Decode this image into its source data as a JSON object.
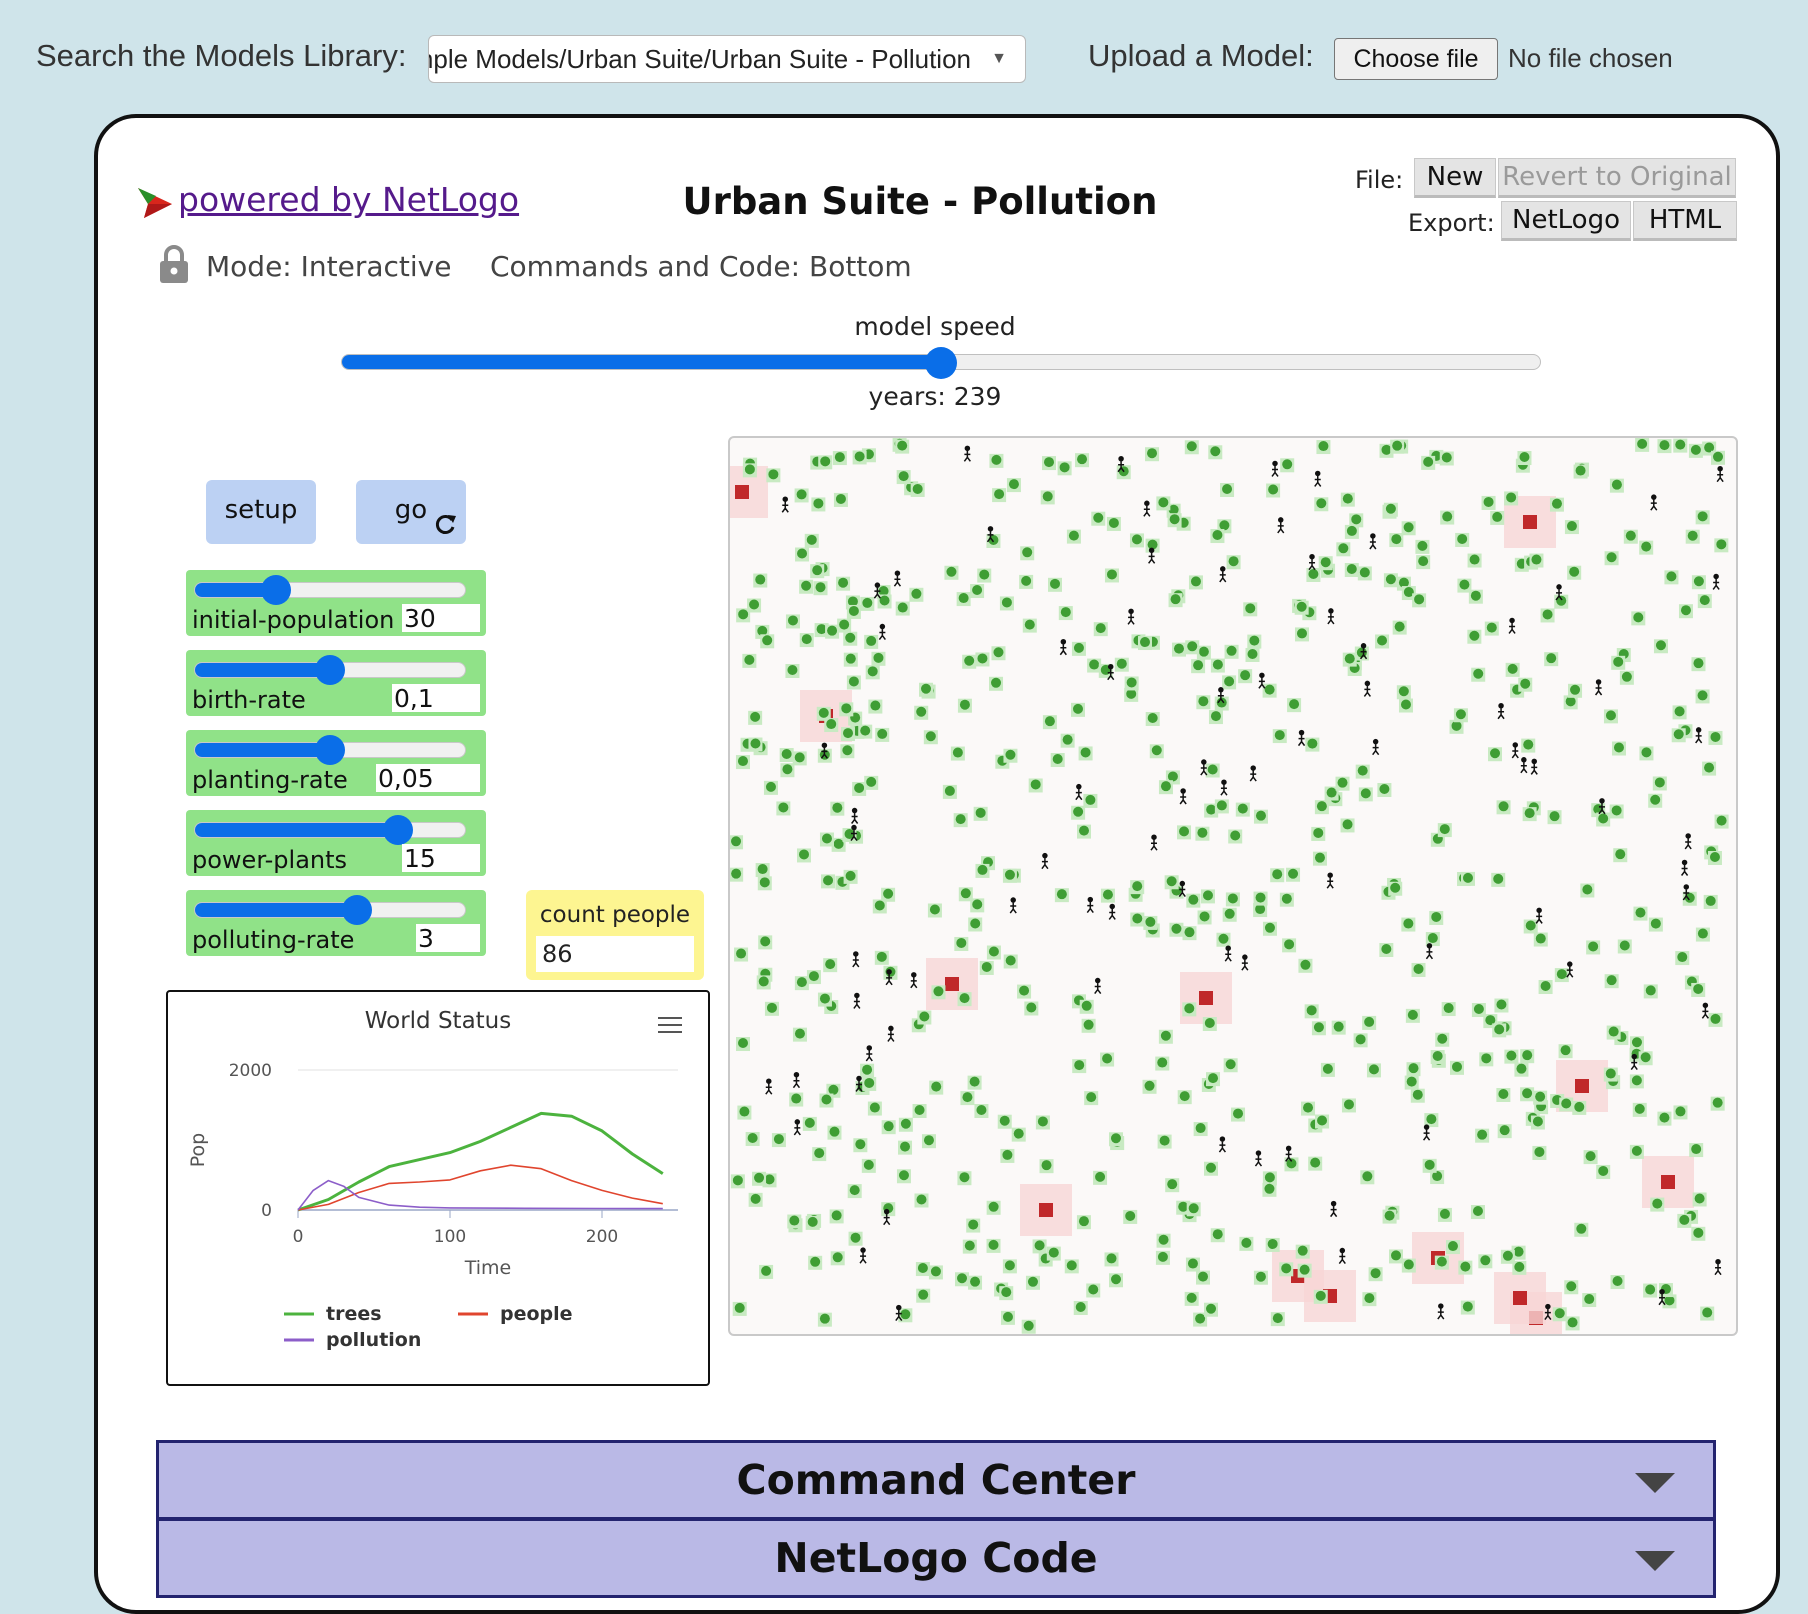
{
  "topbar": {
    "search_label": "Search the Models Library:",
    "selected_model": "Sample Models/Urban Suite/Urban Suite - Pollution",
    "upload_label": "Upload a Model:",
    "choose_file_label": "Choose file",
    "no_file_text": "No file chosen"
  },
  "header": {
    "powered_by": "powered by NetLogo",
    "title": "Urban Suite - Pollution",
    "file_label": "File:",
    "new_label": "New",
    "revert_label": "Revert to Original",
    "export_label": "Export:",
    "export_netlogo": "NetLogo",
    "export_html": "HTML",
    "mode_text": "Mode: Interactive",
    "commands_text": "Commands and Code: Bottom"
  },
  "speed": {
    "label": "model speed",
    "value_fraction": 0.5,
    "ticks_label": "years: 239"
  },
  "buttons": {
    "setup": "setup",
    "go": "go"
  },
  "sliders": [
    {
      "name": "initial-population",
      "value": "30",
      "fraction": 0.3
    },
    {
      "name": "birth-rate",
      "value": "0,1",
      "fraction": 0.5
    },
    {
      "name": "planting-rate",
      "value": "0,05",
      "fraction": 0.5
    },
    {
      "name": "power-plants",
      "value": "15",
      "fraction": 0.75
    },
    {
      "name": "polluting-rate",
      "value": "3",
      "fraction": 0.6
    }
  ],
  "monitor": {
    "label": "count people",
    "value": "86"
  },
  "colors": {
    "trees": "#4cb33e",
    "people": "#e0452e",
    "pollution": "#8c5ec9",
    "slider_bg": "#90e288",
    "button_bg": "#bcd1f3",
    "monitor_bg": "#fdf591"
  },
  "chart_data": {
    "type": "line",
    "title": "World Status",
    "xlabel": "Time",
    "ylabel": "Pop",
    "xlim": [
      0,
      250
    ],
    "ylim": [
      0,
      2000
    ],
    "x_ticks": [
      "0",
      "100",
      "200"
    ],
    "y_ticks": [
      "0",
      "2000"
    ],
    "legend_position": "bottom",
    "series": [
      {
        "name": "trees",
        "color": "#4cb33e",
        "x": [
          0,
          20,
          40,
          60,
          80,
          100,
          120,
          140,
          160,
          180,
          200,
          220,
          240
        ],
        "y": [
          0,
          150,
          400,
          620,
          720,
          820,
          980,
          1180,
          1380,
          1340,
          1130,
          800,
          520
        ]
      },
      {
        "name": "people",
        "color": "#e0452e",
        "x": [
          0,
          20,
          40,
          60,
          80,
          100,
          120,
          140,
          160,
          180,
          200,
          220,
          240
        ],
        "y": [
          0,
          80,
          250,
          380,
          400,
          430,
          560,
          640,
          590,
          420,
          280,
          170,
          90
        ]
      },
      {
        "name": "pollution",
        "color": "#8c5ec9",
        "x": [
          0,
          10,
          20,
          30,
          40,
          60,
          80,
          100,
          150,
          200,
          240
        ],
        "y": [
          0,
          280,
          420,
          340,
          180,
          70,
          40,
          30,
          25,
          22,
          20
        ]
      }
    ]
  },
  "panels": {
    "command_center": "Command Center",
    "netlogo_code": "NetLogo Code"
  }
}
